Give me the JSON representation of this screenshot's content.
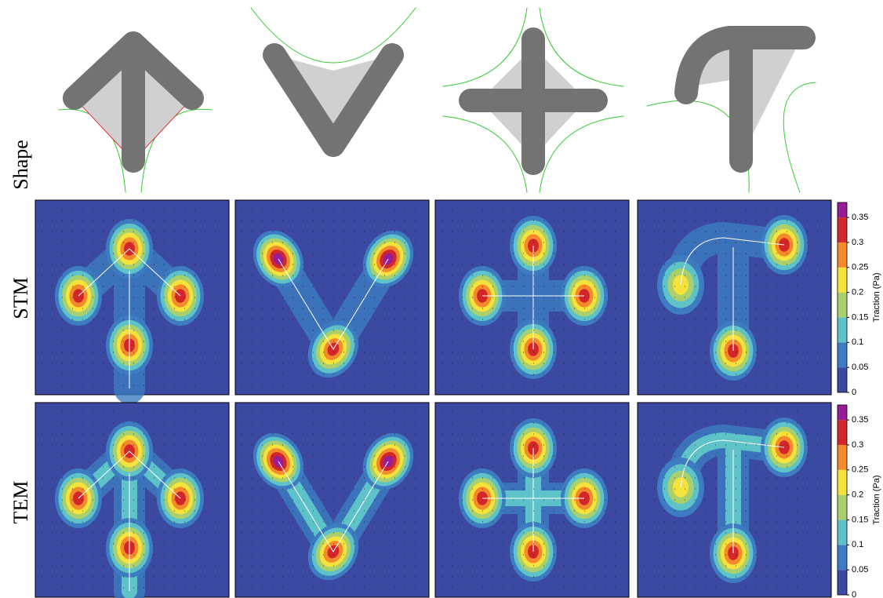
{
  "figure": {
    "row_labels": [
      "Shape",
      "STM",
      "TEM"
    ],
    "colorbars": [
      {
        "label": "Traction (Pa)",
        "lim": [
          0,
          0.38
        ],
        "ticks": [
          0,
          0.05,
          0.1,
          0.15,
          0.2,
          0.25,
          0.3,
          0.35
        ],
        "colors": [
          "#3b4aa0",
          "#3d7cc0",
          "#5ec3c8",
          "#a9d06c",
          "#f5e23a",
          "#f38a2b",
          "#d3262b",
          "#981c98"
        ]
      },
      {
        "label": "Traction (Pa)",
        "lim": [
          0,
          0.38
        ],
        "ticks": [
          0,
          0.05,
          0.1,
          0.15,
          0.2,
          0.25,
          0.3,
          0.35
        ],
        "colors": [
          "#3b4aa0",
          "#3d7cc0",
          "#5ec3c8",
          "#a9d06c",
          "#f5e23a",
          "#f38a2b",
          "#d3262b",
          "#981c98"
        ]
      }
    ]
  }
}
